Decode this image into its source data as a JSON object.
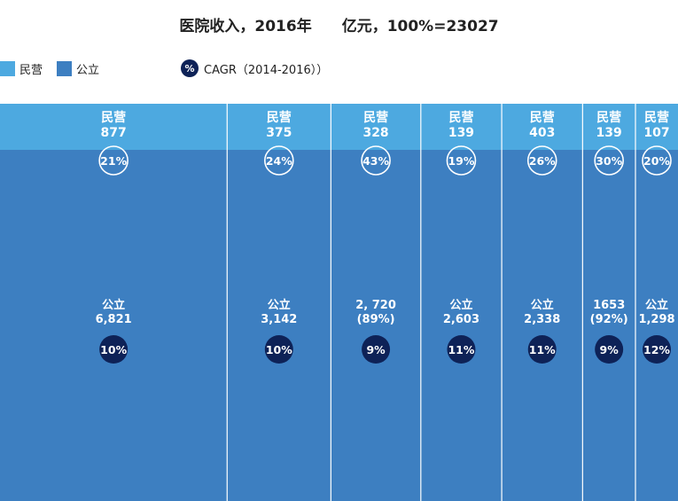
{
  "title": "医院收入，2016年　　亿元，100%=23027",
  "legend": {
    "private_label": "民营",
    "public_label": "公立",
    "cagr_symbol": "%",
    "cagr_label": "CAGR（2014-2016））"
  },
  "colors": {
    "private": "#4da9e0",
    "public": "#3d7fc1",
    "cagr_circle": "#0e2257",
    "divider": "#ffffff"
  },
  "chart_data": {
    "type": "bar",
    "total": 23027,
    "series": [
      {
        "name": "民营",
        "values": [
          877,
          375,
          328,
          139,
          403,
          139,
          107
        ],
        "labels": [
          "民营\n877",
          "民营\n375",
          "民营\n328",
          "民营\n139",
          "民营\n403",
          "民营\n139",
          "民营\n107"
        ],
        "cagr": [
          "21%",
          "24%",
          "43%",
          "19%",
          "26%",
          "30%",
          "20%"
        ]
      },
      {
        "name": "公立",
        "values": [
          6821,
          3142,
          2720,
          2603,
          2338,
          1653,
          1298
        ],
        "labels": [
          "公立\n6,821",
          "公立\n3,142",
          "2, 720\n(89%)",
          "公立\n2,603",
          "公立\n2,338",
          "1653\n(92%)",
          "公立\n1,298"
        ],
        "cagr": [
          "10%",
          "10%",
          "9%",
          "11%",
          "11%",
          "9%",
          "12%"
        ]
      }
    ]
  }
}
